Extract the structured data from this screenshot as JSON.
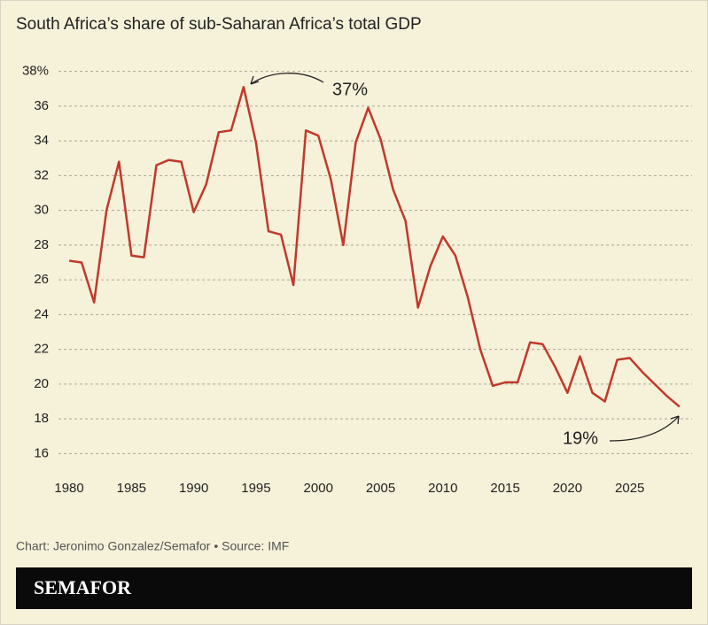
{
  "chart_data": {
    "type": "line",
    "title": "South Africa’s share of sub-Saharan Africa’s total GDP",
    "x": [
      1980,
      1981,
      1982,
      1983,
      1984,
      1985,
      1986,
      1987,
      1988,
      1989,
      1990,
      1991,
      1992,
      1993,
      1994,
      1995,
      1996,
      1997,
      1998,
      1999,
      2000,
      2001,
      2002,
      2003,
      2004,
      2005,
      2006,
      2007,
      2008,
      2009,
      2010,
      2011,
      2012,
      2013,
      2014,
      2015,
      2016,
      2017,
      2018,
      2019,
      2020,
      2021,
      2022,
      2023,
      2024,
      2025,
      2026,
      2027,
      2028,
      2029
    ],
    "series": [
      {
        "color": "#c0392b",
        "values": [
          27.1,
          27.0,
          24.7,
          30.0,
          32.8,
          27.4,
          27.3,
          32.6,
          32.9,
          32.8,
          29.9,
          31.5,
          34.5,
          34.6,
          37.1,
          33.9,
          28.8,
          28.6,
          25.7,
          34.6,
          34.3,
          31.8,
          28.0,
          33.9,
          35.9,
          34.1,
          31.2,
          29.4,
          24.4,
          26.8,
          28.5,
          27.4,
          25.0,
          22.0,
          19.9,
          20.1,
          20.1,
          22.4,
          22.3,
          21.0,
          19.5,
          21.6,
          19.5,
          19.0,
          21.4,
          21.5,
          20.7,
          20.0,
          19.3,
          18.7
        ]
      }
    ],
    "xlim": [
      1979,
      2030
    ],
    "xticks": [
      1980,
      1985,
      1990,
      1995,
      2000,
      2005,
      2010,
      2015,
      2020,
      2025
    ],
    "ylim": [
      15,
      39
    ],
    "yticks": [
      16,
      18,
      20,
      22,
      24,
      26,
      28,
      30,
      32,
      34,
      36,
      {
        "value": 38,
        "label": "38%"
      }
    ],
    "grid": true,
    "annotations": [
      "37%",
      "19%"
    ],
    "footer": "Chart: Jeronimo Gonzalez/Semafor • Source: IMF",
    "brand": "SEMAFOR"
  }
}
